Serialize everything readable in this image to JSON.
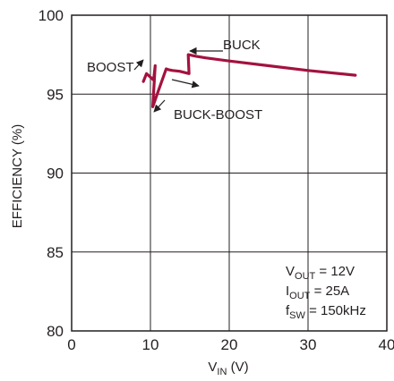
{
  "chart_data": {
    "type": "line",
    "title": "",
    "xlabel_main": "V",
    "xlabel_sub": "IN",
    "xlabel_unit": " (V)",
    "ylabel": "EFFICIENCY (%)",
    "xlim": [
      0,
      40
    ],
    "ylim": [
      80,
      100
    ],
    "xticks": [
      "0",
      "10",
      "20",
      "30",
      "40"
    ],
    "yticks": [
      "100",
      "95",
      "90",
      "85",
      "80"
    ],
    "grid": true,
    "colors": {
      "curve": "#a3123f",
      "ink": "#231f20",
      "grid": "#231f20"
    },
    "series": [
      {
        "x": [
          36,
          30,
          25,
          20,
          17,
          15.8,
          14.8,
          14.9,
          13.7,
          12.8,
          12.3,
          12.0,
          11.0,
          10.3,
          10.6,
          10.4,
          9.5,
          9.1
        ],
        "y": [
          96.2,
          96.5,
          96.8,
          97.1,
          97.3,
          97.4,
          97.5,
          96.3,
          96.45,
          96.5,
          96.55,
          96.6,
          95.2,
          94.2,
          96.8,
          95.9,
          96.3,
          95.8
        ]
      }
    ],
    "annotations": {
      "buck": "BUCK",
      "boost": "BOOST",
      "buck_boost": "BUCK-BOOST"
    },
    "conditions": [
      {
        "main": "V",
        "sub": "OUT",
        "rest": " = 12V"
      },
      {
        "main": "I",
        "sub": "OUT",
        "rest": " = 25A"
      },
      {
        "main": "f",
        "sub": "SW",
        "rest": " = 150kHz"
      }
    ]
  }
}
